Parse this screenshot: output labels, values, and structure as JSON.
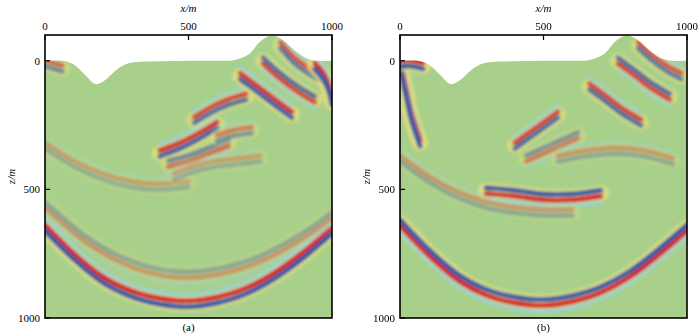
{
  "chart_data": [
    {
      "type": "wavefield",
      "label": "(a)",
      "xlabel": "x/m",
      "ylabel": "z/m",
      "xlim": [
        0,
        1000
      ],
      "ylim": [
        -100,
        1000
      ],
      "xticks": [
        0,
        500,
        1000
      ],
      "yticks": [
        0,
        500,
        1000
      ],
      "surface": {
        "x": [
          0,
          60,
          100,
          140,
          175,
          210,
          250,
          300,
          400,
          500,
          600,
          660,
          710,
          750,
          790,
          830,
          870,
          910,
          950,
          1000
        ],
        "z": [
          0,
          0,
          15,
          55,
          90,
          75,
          35,
          8,
          2,
          0,
          0,
          -3,
          -25,
          -75,
          -98,
          -80,
          -40,
          -10,
          0,
          0
        ]
      },
      "wavefronts": [
        {
          "x": [
            0,
            100,
            200,
            300,
            400,
            500,
            600,
            700,
            800,
            900,
            1000
          ],
          "z": [
            650,
            760,
            850,
            905,
            935,
            945,
            930,
            895,
            835,
            755,
            660
          ],
          "amplitude": 1
        },
        {
          "x": [
            0,
            150,
            300,
            450,
            600,
            750,
            900,
            1000
          ],
          "z": [
            560,
            700,
            790,
            830,
            820,
            770,
            680,
            600
          ],
          "amplitude": -0.35
        },
        {
          "x": [
            0,
            100,
            200,
            300,
            400,
            500
          ],
          "z": [
            330,
            400,
            450,
            480,
            490,
            480
          ],
          "amplitude": 0.3
        },
        {
          "x": [
            400,
            470,
            540,
            600
          ],
          "z": [
            360,
            330,
            290,
            250
          ],
          "amplitude": 0.9
        },
        {
          "x": [
            430,
            500,
            570,
            640
          ],
          "z": [
            400,
            380,
            350,
            320
          ],
          "amplitude": -0.6
        },
        {
          "x": [
            520,
            580,
            640,
            700
          ],
          "z": [
            230,
            190,
            160,
            140
          ],
          "amplitude": 0.8
        },
        {
          "x": [
            600,
            660,
            720
          ],
          "z": [
            300,
            280,
            270
          ],
          "amplitude": 0.5
        },
        {
          "x": [
            680,
            740,
            800,
            860
          ],
          "z": [
            60,
            110,
            160,
            210
          ],
          "amplitude": 0.9
        },
        {
          "x": [
            760,
            820,
            880,
            940
          ],
          "z": [
            0,
            60,
            110,
            150
          ],
          "amplitude": -0.8
        },
        {
          "x": [
            820,
            870,
            920,
            970
          ],
          "z": [
            -60,
            0,
            40,
            70
          ],
          "amplitude": 0.7
        },
        {
          "x": [
            940,
            970,
            990,
            1000
          ],
          "z": [
            20,
            60,
            110,
            160
          ],
          "amplitude": 1
        },
        {
          "x": [
            0,
            30,
            60
          ],
          "z": [
            10,
            20,
            30
          ],
          "amplitude": 0.6
        },
        {
          "x": [
            450,
            520,
            600,
            680,
            750
          ],
          "z": [
            450,
            420,
            400,
            390,
            380
          ],
          "amplitude": 0.3
        }
      ]
    },
    {
      "type": "wavefield",
      "label": "(b)",
      "xlabel": "x/m",
      "ylabel": "z/m",
      "xlim": [
        0,
        1000
      ],
      "ylim": [
        -100,
        1000
      ],
      "xticks": [
        0,
        500,
        1000
      ],
      "yticks": [
        0,
        500,
        1000
      ],
      "surface": {
        "x": [
          0,
          60,
          100,
          140,
          175,
          210,
          250,
          300,
          400,
          500,
          600,
          660,
          710,
          750,
          790,
          830,
          870,
          910,
          950,
          1000
        ],
        "z": [
          0,
          0,
          15,
          55,
          90,
          75,
          35,
          8,
          2,
          0,
          0,
          -3,
          -25,
          -75,
          -98,
          -80,
          -40,
          -10,
          0,
          0
        ]
      },
      "wavefronts": [
        {
          "x": [
            0,
            100,
            200,
            300,
            400,
            500,
            600,
            700,
            800,
            900,
            1000
          ],
          "z": [
            630,
            745,
            840,
            900,
            930,
            940,
            925,
            890,
            830,
            745,
            650
          ],
          "amplitude": -1
        },
        {
          "x": [
            300,
            400,
            500,
            600,
            700
          ],
          "z": [
            505,
            515,
            530,
            530,
            515
          ],
          "amplitude": -1
        },
        {
          "x": [
            0,
            20,
            40,
            70
          ],
          "z": [
            20,
            120,
            220,
            320
          ],
          "amplitude": 1
        },
        {
          "x": [
            0,
            100,
            200,
            300,
            400,
            500,
            600
          ],
          "z": [
            380,
            460,
            520,
            560,
            580,
            590,
            590
          ],
          "amplitude": 0.35
        },
        {
          "x": [
            400,
            450,
            500,
            550
          ],
          "z": [
            330,
            290,
            250,
            210
          ],
          "amplitude": 0.8
        },
        {
          "x": [
            440,
            500,
            560,
            620
          ],
          "z": [
            380,
            350,
            320,
            290
          ],
          "amplitude": -0.5
        },
        {
          "x": [
            660,
            720,
            780,
            840
          ],
          "z": [
            100,
            150,
            200,
            240
          ],
          "amplitude": 0.8
        },
        {
          "x": [
            760,
            820,
            880,
            940
          ],
          "z": [
            0,
            50,
            100,
            140
          ],
          "amplitude": -0.8
        },
        {
          "x": [
            830,
            880,
            930,
            980
          ],
          "z": [
            -60,
            -10,
            30,
            60
          ],
          "amplitude": 0.7
        },
        {
          "x": [
            0,
            40,
            80
          ],
          "z": [
            10,
            10,
            20
          ],
          "amplitude": 1
        },
        {
          "x": [
            550,
            650,
            750,
            850,
            950
          ],
          "z": [
            380,
            360,
            350,
            360,
            390
          ],
          "amplitude": 0.35
        }
      ]
    }
  ]
}
